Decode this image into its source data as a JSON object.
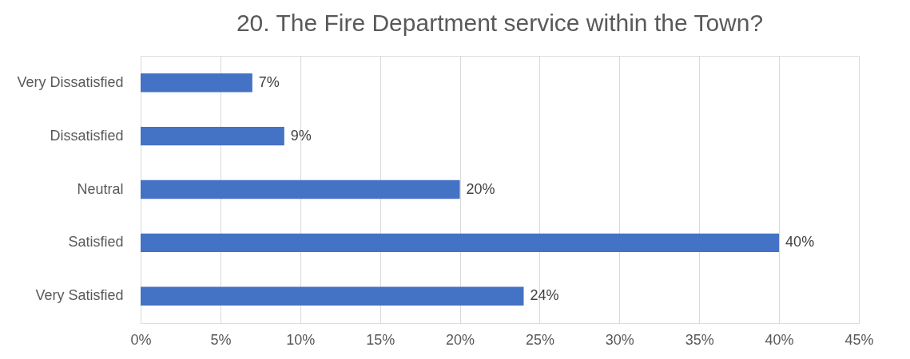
{
  "chart_data": {
    "type": "bar",
    "orientation": "horizontal",
    "title": "20. The Fire Department service within the Town?",
    "categories": [
      "Very Dissatisfied",
      "Dissatisfied",
      "Neutral",
      "Satisfied",
      "Very Satisfied"
    ],
    "values": [
      7,
      9,
      20,
      40,
      24
    ],
    "value_labels": [
      "7%",
      "9%",
      "20%",
      "40%",
      "24%"
    ],
    "color": "#4472c4",
    "xlim": [
      0,
      45
    ],
    "xticks": [
      {
        "value": 0,
        "label": "0%"
      },
      {
        "value": 5,
        "label": "5%"
      },
      {
        "value": 10,
        "label": "10%"
      },
      {
        "value": 15,
        "label": "15%"
      },
      {
        "value": 20,
        "label": "20%"
      },
      {
        "value": 25,
        "label": "25%"
      },
      {
        "value": 30,
        "label": "30%"
      },
      {
        "value": 35,
        "label": "35%"
      },
      {
        "value": 40,
        "label": "40%"
      },
      {
        "value": 45,
        "label": "45%"
      }
    ],
    "grid": "x"
  }
}
